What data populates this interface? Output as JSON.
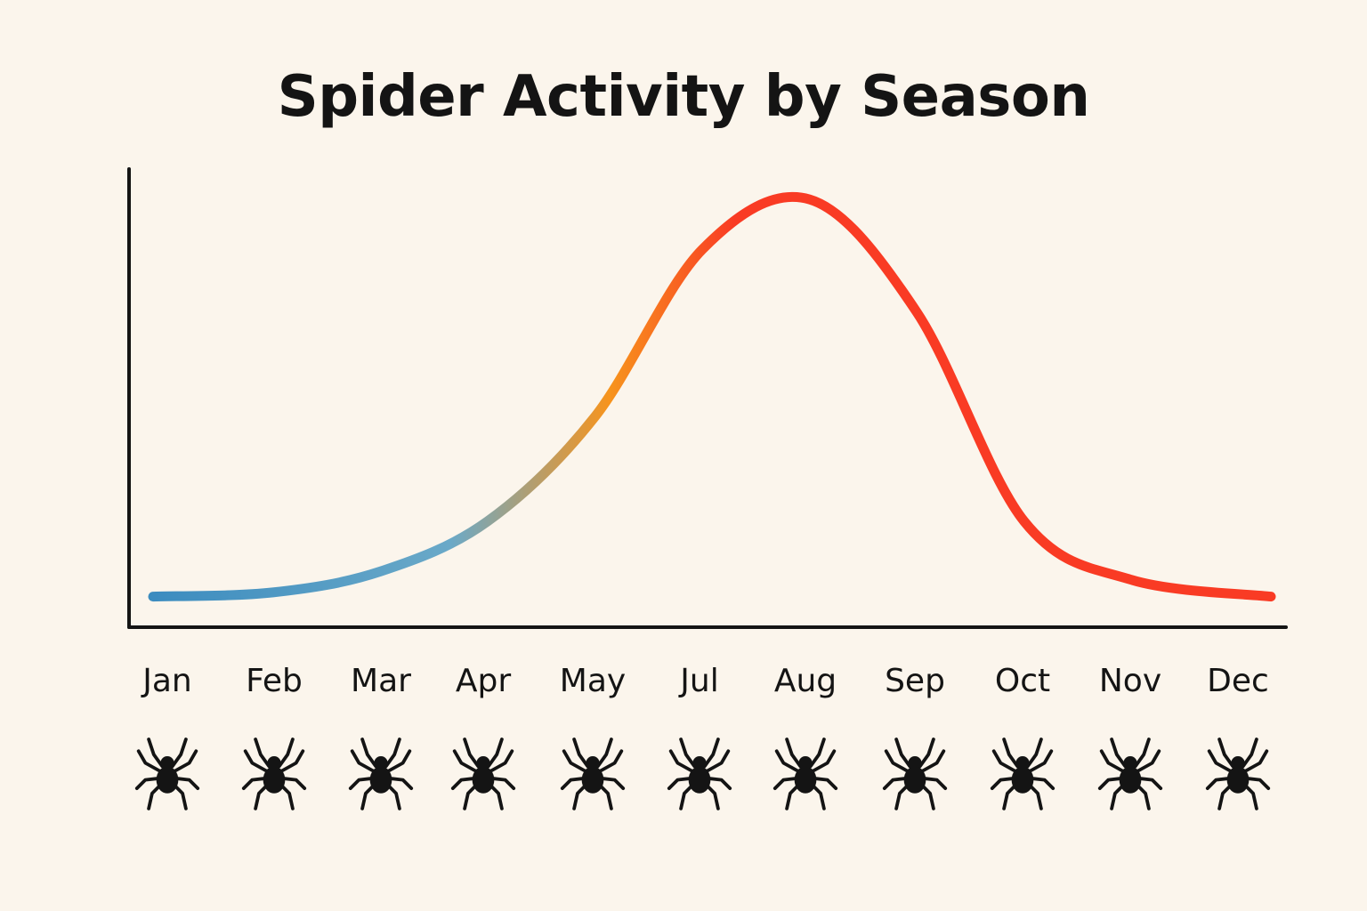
{
  "chart_data": {
    "type": "line",
    "title": "Spider Activity by Season",
    "xlabel": "",
    "ylabel": "",
    "categories": [
      "Jan",
      "Feb",
      "Mar",
      "Apr",
      "May",
      "Jul",
      "Aug",
      "Sep",
      "Oct",
      "Nov",
      "Dec"
    ],
    "series": [
      {
        "values": [
          2,
          3,
          8,
          20,
          45,
          85,
          97,
          70,
          20,
          6,
          2
        ]
      }
    ],
    "ylim": [
      0,
      100
    ],
    "grid": false,
    "legend": "none",
    "category_icon": "spider-icon"
  },
  "colors": {
    "background": "#fbf5ec",
    "axis": "#141414",
    "line_low": "#3a8bbf",
    "line_mid": "#f7941d",
    "line_high": "#f93b24"
  }
}
